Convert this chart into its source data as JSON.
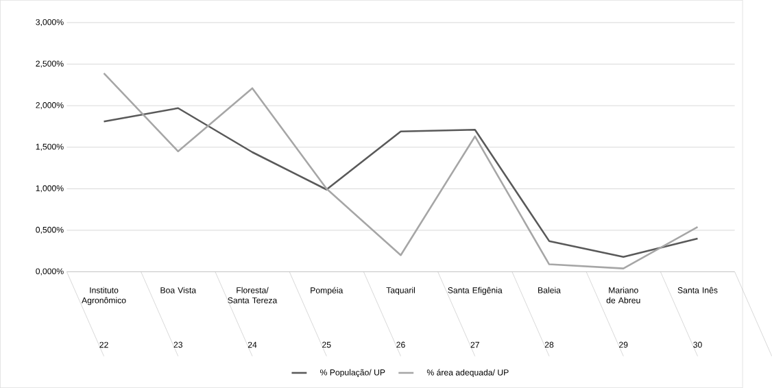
{
  "chart_data": {
    "type": "line",
    "categories": [
      "Instituto Agronômico",
      "Boa Vista",
      "Floresta/ Santa Tereza",
      "Pompéia",
      "Taquaril",
      "Santa Efigênia",
      "Baleia",
      "Mariano de Abreu",
      "Santa Inês"
    ],
    "annotations": [
      "22",
      "23",
      "24",
      "25",
      "26",
      "27",
      "28",
      "29",
      "30"
    ],
    "series": [
      {
        "name": "% População/ UP",
        "color": "#595959",
        "values": [
          1.81,
          1.97,
          1.44,
          0.99,
          1.69,
          1.71,
          0.37,
          0.18,
          0.4
        ]
      },
      {
        "name": "% área adequada/ UP",
        "color": "#a6a6a6",
        "values": [
          2.39,
          1.45,
          2.21,
          1.0,
          0.2,
          1.63,
          0.09,
          0.04,
          0.54
        ]
      }
    ],
    "ylim": [
      0,
      3
    ],
    "yticks": [
      {
        "value": 0,
        "label": "0,000%"
      },
      {
        "value": 0.5,
        "label": "0,500%"
      },
      {
        "value": 1,
        "label": "1,000%"
      },
      {
        "value": 1.5,
        "label": "1,500%"
      },
      {
        "value": 2,
        "label": "2,000%"
      },
      {
        "value": 2.5,
        "label": "2,500%"
      },
      {
        "value": 3,
        "label": "3,000%"
      }
    ],
    "grid": "y",
    "legend": "bottom",
    "marker": "none",
    "line_style": "solid"
  }
}
